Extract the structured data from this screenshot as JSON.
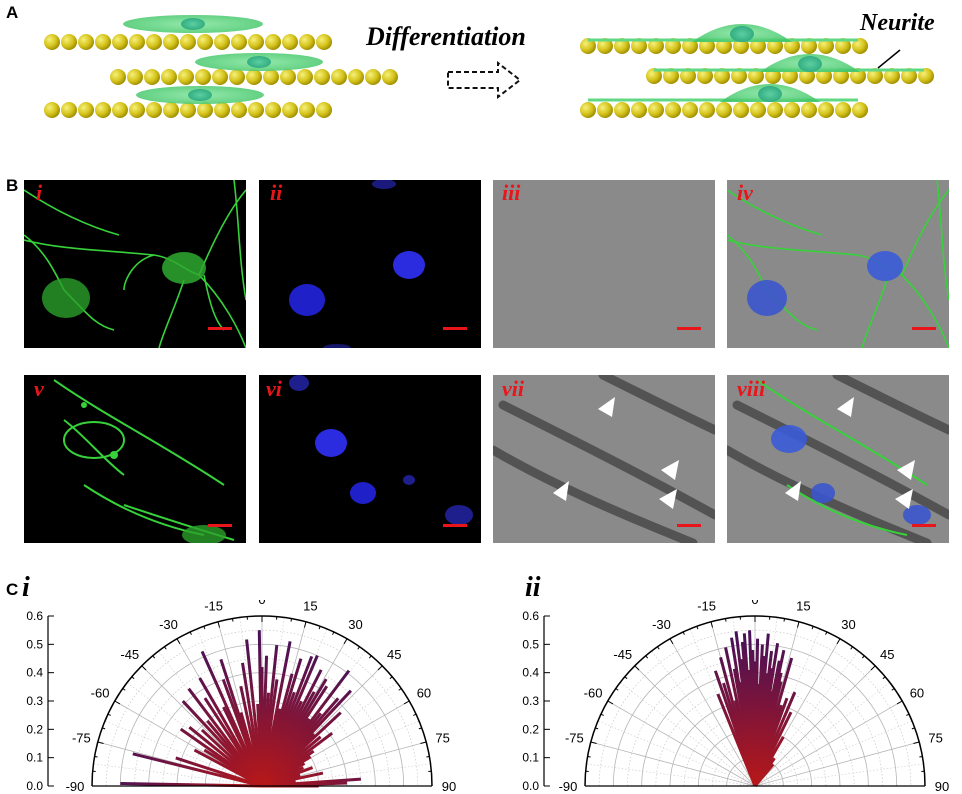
{
  "panel_a": {
    "label": "A",
    "process_label": "Differentiation",
    "neurite_label": "Neurite"
  },
  "panel_b": {
    "label": "B",
    "images": [
      {
        "label": "i",
        "channel": "green"
      },
      {
        "label": "ii",
        "channel": "blue"
      },
      {
        "label": "iii",
        "channel": "gray"
      },
      {
        "label": "iv",
        "channel": "merge"
      },
      {
        "label": "v",
        "channel": "green"
      },
      {
        "label": "vi",
        "channel": "blue"
      },
      {
        "label": "vii",
        "channel": "gray-fibers"
      },
      {
        "label": "viii",
        "channel": "merge-fibers"
      }
    ],
    "colors": {
      "green": "#3bd23b",
      "blue": "#2a2ad8",
      "gray": "#8a8a8a",
      "label": "#e8151b"
    }
  },
  "panel_c": {
    "label": "C",
    "charts": [
      {
        "label": "i"
      },
      {
        "label": "ii"
      }
    ]
  },
  "chart_data": [
    {
      "type": "polar-bar",
      "panel": "C-i",
      "title": "",
      "angle_ticks": [
        "-90",
        "-75",
        "-60",
        "-45",
        "-30",
        "-15",
        "0",
        "15",
        "30",
        "45",
        "60",
        "75",
        "90"
      ],
      "radius_ticks": [
        "0.0",
        "0.1",
        "0.2",
        "0.3",
        "0.4",
        "0.5",
        "0.6"
      ],
      "rlim": [
        0,
        0.6
      ],
      "theta_range": [
        -90,
        90
      ],
      "color_inner": "#b81818",
      "color_outer": "#3a1060",
      "angles": [
        -89,
        -76,
        -72,
        -62,
        -58,
        -55,
        -51,
        -47,
        -43,
        -40,
        -37,
        -33,
        -30,
        -26,
        -24,
        -20,
        -18,
        -16,
        -12,
        -9,
        -6,
        -3,
        -1,
        0,
        2,
        4,
        6,
        8,
        11,
        13,
        15,
        17,
        19,
        21,
        23,
        25,
        27,
        29,
        31,
        33,
        35,
        37,
        39,
        41,
        43,
        45,
        47,
        50,
        53,
        56,
        59,
        62,
        66,
        70,
        74,
        78,
        83,
        86,
        88,
        90
      ],
      "values": [
        0.5,
        0.47,
        0.32,
        0.27,
        0.24,
        0.35,
        0.33,
        0.29,
        0.41,
        0.3,
        0.43,
        0.37,
        0.44,
        0.31,
        0.52,
        0.4,
        0.47,
        0.27,
        0.36,
        0.44,
        0.52,
        0.29,
        0.55,
        0.42,
        0.46,
        0.33,
        0.5,
        0.38,
        0.52,
        0.28,
        0.41,
        0.47,
        0.35,
        0.49,
        0.5,
        0.33,
        0.46,
        0.38,
        0.44,
        0.42,
        0.29,
        0.51,
        0.33,
        0.41,
        0.46,
        0.26,
        0.38,
        0.27,
        0.31,
        0.22,
        0.2,
        0.17,
        0.16,
        0.19,
        0.14,
        0.22,
        0.12,
        0.35,
        0.3,
        0.2
      ]
    },
    {
      "type": "polar-bar",
      "panel": "C-ii",
      "title": "",
      "angle_ticks": [
        "-90",
        "-75",
        "-60",
        "-45",
        "-30",
        "-15",
        "0",
        "15",
        "30",
        "45",
        "60",
        "75",
        "90"
      ],
      "radius_ticks": [
        "0.0",
        "0.1",
        "0.2",
        "0.3",
        "0.4",
        "0.5",
        "0.6"
      ],
      "rlim": [
        0,
        0.6
      ],
      "theta_range": [
        -90,
        90
      ],
      "color_inner": "#b81818",
      "color_outer": "#3a1060",
      "angles": [
        -22,
        -19,
        -17,
        -15,
        -13,
        -12,
        -10,
        -9,
        -8,
        -7,
        -6,
        -5,
        -4,
        -3,
        -2,
        -1,
        0,
        1,
        2,
        3,
        4,
        5,
        6,
        7,
        8,
        9,
        10,
        11,
        12,
        13,
        14,
        16,
        18,
        20,
        23,
        26,
        30,
        35,
        40
      ],
      "values": [
        0.35,
        0.43,
        0.38,
        0.47,
        0.31,
        0.5,
        0.42,
        0.53,
        0.37,
        0.55,
        0.45,
        0.51,
        0.54,
        0.41,
        0.55,
        0.48,
        0.44,
        0.52,
        0.36,
        0.5,
        0.46,
        0.54,
        0.4,
        0.48,
        0.42,
        0.51,
        0.34,
        0.45,
        0.49,
        0.41,
        0.38,
        0.47,
        0.3,
        0.33,
        0.36,
        0.29,
        0.2,
        0.12,
        0.1
      ]
    }
  ]
}
